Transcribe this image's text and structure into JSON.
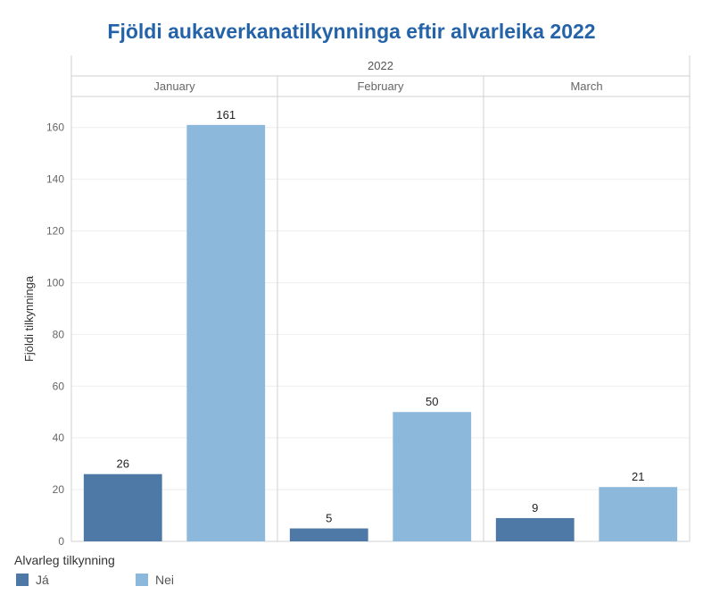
{
  "title": "Fjöldi aukaverkanatilkynninga eftir alvarleika 2022",
  "chart_data": {
    "type": "bar",
    "year_header": "2022",
    "categories": [
      "January",
      "February",
      "March"
    ],
    "series": [
      {
        "name": "Já",
        "values": [
          26,
          5,
          9
        ],
        "color": "#4e79a7"
      },
      {
        "name": "Nei",
        "values": [
          161,
          50,
          21
        ],
        "color": "#8cb8db"
      }
    ],
    "ylabel": "Fjöldi tilkynninga",
    "ylim": [
      0,
      172
    ],
    "yticks": [
      0,
      20,
      40,
      60,
      80,
      100,
      120,
      140,
      160
    ],
    "grid": true,
    "legend_title": "Alvarleg tilkynning",
    "legend_position": "bottom-left"
  }
}
